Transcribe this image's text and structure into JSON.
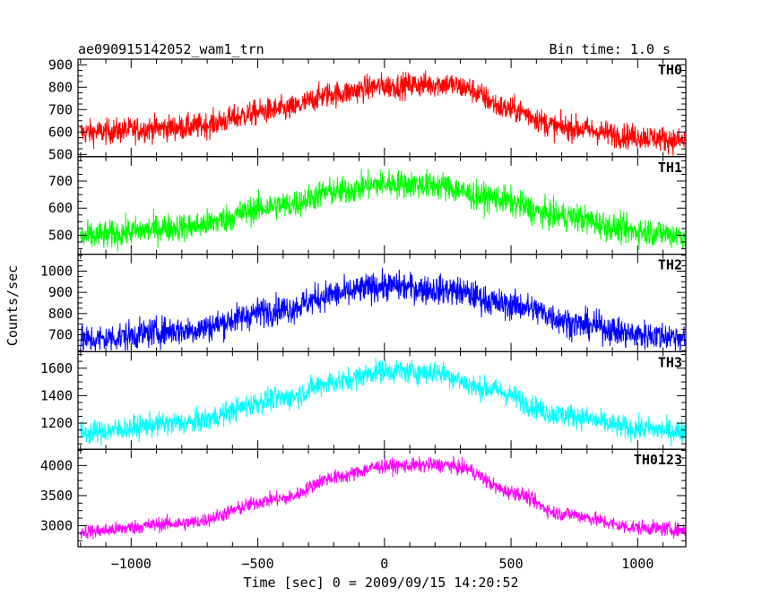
{
  "header": {
    "title": "ae090915142052_wam1_trn",
    "bin_time": "Bin time: 1.0 s"
  },
  "chart_data": {
    "type": "line",
    "title": "ae090915142052_wam1_trn",
    "xlabel": "Time [sec] 0 = 2009/09/15 14:20:52",
    "ylabel": "Counts/sec",
    "xlim": [
      -1210,
      1190
    ],
    "x_ticks": [
      -1000,
      -500,
      0,
      500,
      1000
    ],
    "x_tick_labels": [
      "−1000",
      "−500",
      "0",
      "500",
      "1000"
    ],
    "grid": false,
    "panels": [
      {
        "name": "TH0",
        "color": "#ff0000",
        "ylim": [
          490,
          925
        ],
        "yticks": [
          500,
          600,
          700,
          800,
          900
        ],
        "ytick_labels": [
          "500",
          "600",
          "700",
          "800",
          "900"
        ],
        "profile": {
          "x": [
            -1200,
            -800,
            -400,
            -200,
            0,
            250,
            300,
            500,
            700,
            1000,
            1190
          ],
          "y": [
            598,
            620,
            700,
            770,
            805,
            815,
            800,
            700,
            620,
            580,
            560
          ]
        },
        "noise": 28
      },
      {
        "name": "TH1",
        "color": "#00ff00",
        "ylim": [
          430,
          790
        ],
        "yticks": [
          500,
          600,
          700
        ],
        "ytick_labels": [
          "500",
          "600",
          "700"
        ],
        "profile": {
          "x": [
            -1200,
            -800,
            -400,
            -200,
            0,
            200,
            400,
            700,
            1000,
            1190
          ],
          "y": [
            495,
            530,
            610,
            660,
            690,
            685,
            640,
            570,
            515,
            500
          ]
        },
        "noise": 26
      },
      {
        "name": "TH2",
        "color": "#0000ff",
        "ylim": [
          620,
          1080
        ],
        "yticks": [
          700,
          800,
          900,
          1000
        ],
        "ytick_labels": [
          "700",
          "800",
          "900",
          "1000"
        ],
        "profile": {
          "x": [
            -1200,
            -800,
            -400,
            -200,
            0,
            250,
            500,
            800,
            1000,
            1190
          ],
          "y": [
            675,
            720,
            820,
            890,
            930,
            910,
            840,
            745,
            700,
            690
          ]
        },
        "noise": 34
      },
      {
        "name": "TH3",
        "color": "#00ffff",
        "ylim": [
          1010,
          1720
        ],
        "yticks": [
          1200,
          1400,
          1600
        ],
        "ytick_labels": [
          "1200",
          "1400",
          "1600"
        ],
        "profile": {
          "x": [
            -1200,
            -800,
            -400,
            -200,
            0,
            200,
            400,
            700,
            1000,
            1190
          ],
          "y": [
            1130,
            1200,
            1380,
            1500,
            1580,
            1570,
            1450,
            1260,
            1160,
            1140
          ]
        },
        "noise": 42
      },
      {
        "name": "TH0123",
        "color": "#ff00ff",
        "ylim": [
          2650,
          4270
        ],
        "yticks": [
          3000,
          3500,
          4000
        ],
        "ytick_labels": [
          "3000",
          "3500",
          "4000"
        ],
        "profile": {
          "x": [
            -1200,
            -800,
            -400,
            -200,
            0,
            250,
            300,
            500,
            700,
            1000,
            1190
          ],
          "y": [
            2900,
            3040,
            3450,
            3800,
            3990,
            4010,
            3960,
            3560,
            3200,
            2970,
            2930
          ]
        },
        "noise": 60
      }
    ]
  }
}
